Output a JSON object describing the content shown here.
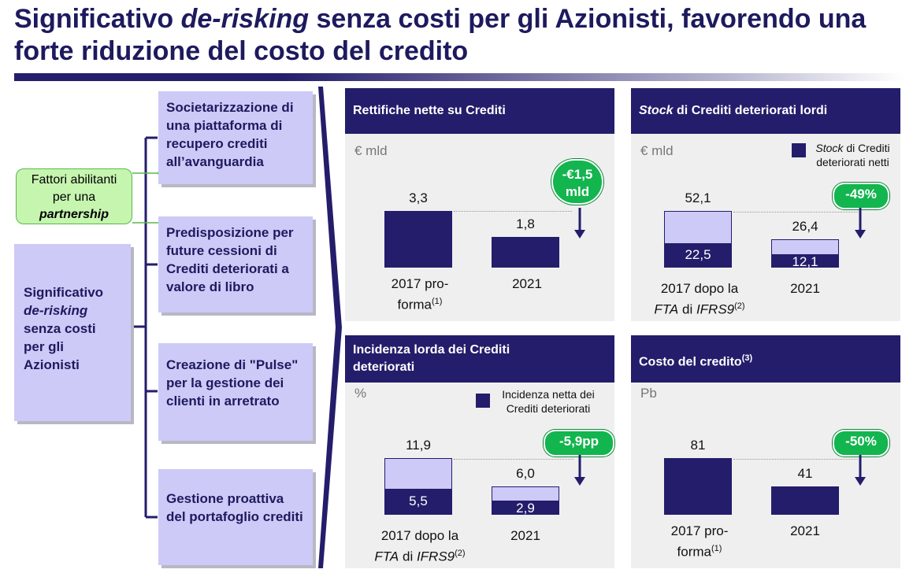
{
  "title": {
    "part1": "Significativo ",
    "part2": "de-risking",
    "part3": " senza costi per gli Azionisti, favorendo una forte riduzione del costo del credito"
  },
  "left": {
    "main_box": {
      "line1": "Significativo",
      "line2": "de-risking",
      "line3": "senza costi",
      "line4": "per gli",
      "line5": "Azionisti"
    },
    "green_box": {
      "line1": "Fattori abilitanti",
      "line2": "per una",
      "line3": "partnership"
    },
    "items": [
      {
        "label": "Societarizzazione di una piattaforma di recupero crediti all’avanguardia"
      },
      {
        "label": "Predisposizione per future cessioni di Crediti deteriorati a valore di libro"
      },
      {
        "label": "Creazione di \"Pulse\" per la gestione dei clienti in arretrato"
      },
      {
        "label": "Gestione proattiva del portafoglio crediti"
      }
    ]
  },
  "chart_data": [
    {
      "type": "bar",
      "title": "Rettifiche nette su Crediti",
      "unit": "€ mld",
      "categories": [
        "2017 pro-forma(1)",
        "2021"
      ],
      "series": [
        {
          "values": [
            3.3,
            1.8
          ]
        }
      ],
      "labels": [
        "3,3",
        "1,8"
      ],
      "cat_lines": [
        [
          "2017 pro-",
          "forma",
          "(1)"
        ],
        [
          "2021",
          "",
          ""
        ]
      ],
      "badge": [
        "-€1,5",
        "mld"
      ]
    },
    {
      "type": "bar",
      "title": "Stock di Crediti deteriorati lordi",
      "title_italic": "Stock",
      "title_rest": " di Crediti deteriorati lordi",
      "unit": "€ mld",
      "legend": {
        "italic": "Stock",
        "rest": " di Crediti",
        "line2": "deteriorati netti"
      },
      "categories": [
        "2017 dopo la FTA di IFRS9(2)",
        "2021"
      ],
      "series": [
        {
          "name": "Stock di Crediti deteriorati netti",
          "values": [
            22.5,
            12.1
          ]
        },
        {
          "values": [
            52.1,
            26.4
          ]
        }
      ],
      "labels_total": [
        "52,1",
        "26,4"
      ],
      "labels_net": [
        "22,5",
        "12,1"
      ],
      "cat_lines": [
        [
          "2017 dopo la",
          "FTA",
          " di ",
          "IFRS9",
          "(2)"
        ],
        [
          "2021"
        ]
      ],
      "badge": [
        "-49%"
      ]
    },
    {
      "type": "bar",
      "title": "Incidenza lorda dei Crediti deteriorati",
      "title_line1": "Incidenza lorda dei Crediti",
      "title_line2": "deteriorati",
      "unit": "%",
      "legend": {
        "line1": "Incidenza netta dei",
        "line2": "Crediti deteriorati"
      },
      "categories": [
        "2017 dopo la FTA di IFRS9(2)",
        "2021"
      ],
      "series": [
        {
          "name": "Incidenza netta dei Crediti deteriorati",
          "values": [
            5.5,
            2.9
          ]
        },
        {
          "values": [
            11.9,
            6.0
          ]
        }
      ],
      "labels_total": [
        "11,9",
        "6,0"
      ],
      "labels_net": [
        "5,5",
        "2,9"
      ],
      "cat_lines": [
        [
          "2017 dopo la",
          "FTA",
          " di ",
          "IFRS9",
          "(2)"
        ],
        [
          "2021"
        ]
      ],
      "badge": [
        "-5,9pp"
      ]
    },
    {
      "type": "bar",
      "title": "Costo del credito(3)",
      "title_main": "Costo del credito",
      "title_sup": "(3)",
      "unit": "Pb",
      "categories": [
        "2017 pro-forma(1)",
        "2021"
      ],
      "series": [
        {
          "values": [
            81,
            41
          ]
        }
      ],
      "labels": [
        "81",
        "41"
      ],
      "cat_lines": [
        [
          "2017 pro-",
          "forma",
          "(1)"
        ],
        [
          "2021",
          "",
          ""
        ]
      ],
      "badge": [
        "-50%"
      ]
    }
  ]
}
